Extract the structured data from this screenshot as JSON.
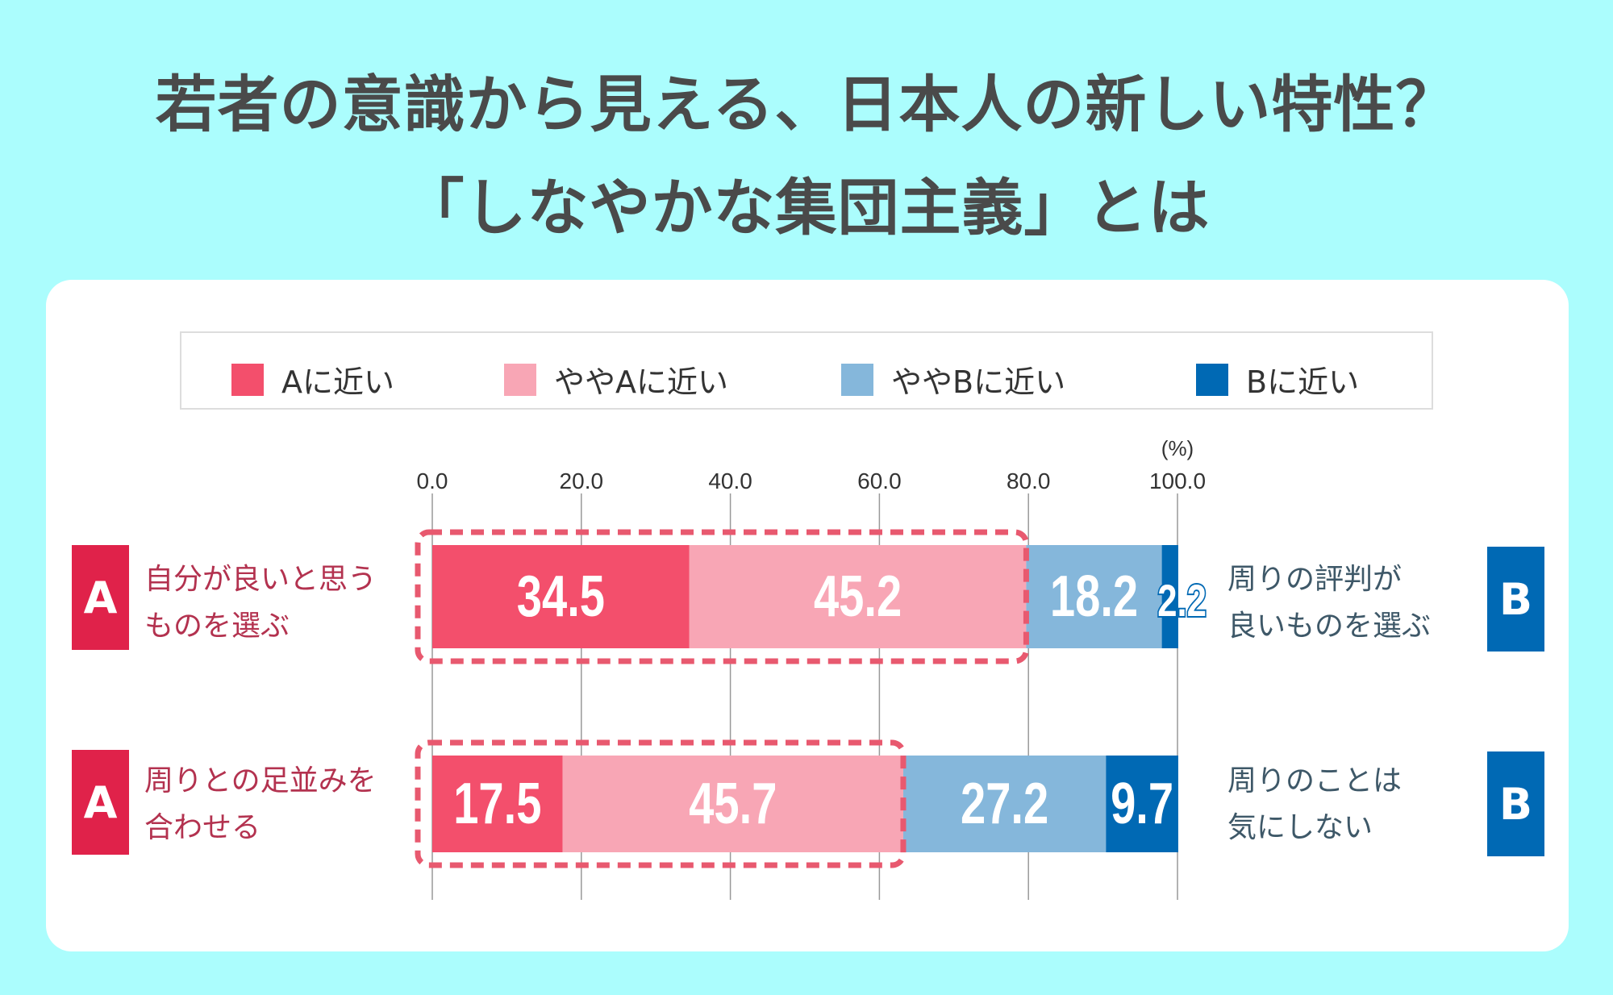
{
  "title": {
    "line1": "若者の意識から見える、日本人の新しい特性？",
    "line2": "「しなやかな集団主義」とは"
  },
  "colors": {
    "background": "#abfdfd",
    "a_badge": "#e0224a",
    "a_close": "#f34f6c",
    "somewhat_a": "#f8a6b5",
    "somewhat_b": "#85b7db",
    "b_close": "#0069b4",
    "dash": "#e8596f"
  },
  "badges": {
    "a": "A",
    "b": "B"
  },
  "chart_data": {
    "type": "bar",
    "orientation": "horizontal",
    "stacked": true,
    "unit_label": "(%)",
    "xlim": [
      0,
      100
    ],
    "ticks": [
      "0.0",
      "20.0",
      "40.0",
      "60.0",
      "80.0",
      "100.0"
    ],
    "grid": true,
    "legend_placement": "top",
    "series_names": [
      "Aに近い",
      "ややAに近い",
      "ややBに近い",
      "Bに近い"
    ],
    "rows": [
      {
        "a_label": [
          "自分が良いと思う",
          "ものを選ぶ"
        ],
        "b_label": [
          "周りの評判が",
          "良いものを選ぶ"
        ],
        "values": [
          34.5,
          45.2,
          18.2,
          2.2
        ],
        "highlight_a_total": true
      },
      {
        "a_label": [
          "周りとの足並みを",
          "合わせる"
        ],
        "b_label": [
          "周りのことは",
          "気にしない"
        ],
        "values": [
          17.5,
          45.7,
          27.2,
          9.7
        ],
        "highlight_a_total": true
      }
    ]
  }
}
